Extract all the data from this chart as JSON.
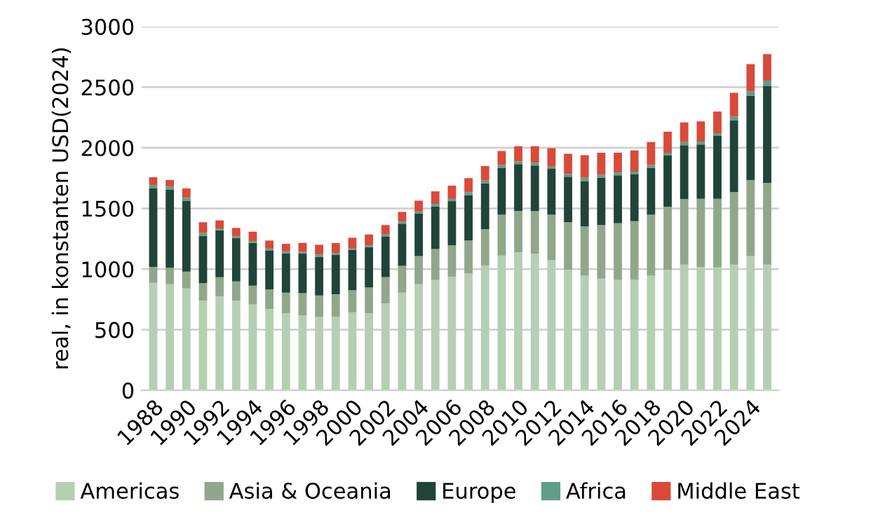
{
  "chart_data": {
    "type": "bar",
    "stacked": true,
    "ylabel": "real, in konstanten USD(2024)",
    "categories": [
      "1988",
      null,
      "1990",
      null,
      "1992",
      null,
      "1994",
      null,
      "1996",
      null,
      "1998",
      null,
      "2000",
      null,
      "2002",
      null,
      "2004",
      null,
      "2006",
      null,
      "2008",
      null,
      "2010",
      null,
      "2012",
      null,
      "2014",
      null,
      "2016",
      null,
      "2018",
      null,
      "2020",
      null,
      "2022",
      null,
      "2024",
      null
    ],
    "series": [
      {
        "name": "Americas",
        "color": "#b5cfb3",
        "values": [
          886,
          875,
          840,
          739,
          774,
          739,
          708,
          670,
          635,
          619,
          604,
          606,
          643,
          635,
          716,
          805,
          875,
          910,
          937,
          964,
          1030,
          1111,
          1138,
          1126,
          1072,
          995,
          945,
          921,
          910,
          914,
          945,
          995,
          1037,
          1018,
          1014,
          1037,
          1107,
          1037
        ]
      },
      {
        "name": "Asia & Oceania",
        "color": "#8fa88a",
        "values": [
          132,
          135,
          139,
          144,
          159,
          159,
          155,
          162,
          170,
          182,
          178,
          186,
          182,
          213,
          217,
          221,
          232,
          255,
          259,
          271,
          298,
          337,
          341,
          353,
          376,
          391,
          406,
          442,
          468,
          480,
          503,
          519,
          539,
          561,
          565,
          597,
          627,
          674
        ]
      },
      {
        "name": "Europe",
        "color": "#21443a",
        "values": [
          647,
          643,
          585,
          391,
          387,
          356,
          352,
          322,
          325,
          326,
          317,
          325,
          332,
          333,
          333,
          348,
          352,
          352,
          364,
          375,
          379,
          387,
          387,
          375,
          379,
          375,
          375,
          391,
          395,
          386,
          387,
          422,
          445,
          449,
          519,
          592,
          697,
          797
        ]
      },
      {
        "name": "Africa",
        "color": "#5f9e8a",
        "values": [
          27,
          27,
          23,
          23,
          15,
          16,
          16,
          15,
          16,
          15,
          20,
          15,
          16,
          15,
          19,
          16,
          16,
          20,
          19,
          24,
          23,
          23,
          23,
          23,
          19,
          24,
          28,
          23,
          23,
          24,
          23,
          23,
          27,
          24,
          23,
          31,
          35,
          47
        ]
      },
      {
        "name": "Middle East",
        "color": "#d94a3a",
        "values": [
          65,
          54,
          78,
          89,
          66,
          69,
          77,
          66,
          62,
          74,
          81,
          82,
          85,
          89,
          78,
          81,
          89,
          104,
          109,
          116,
          120,
          116,
          124,
          136,
          151,
          166,
          185,
          182,
          163,
          174,
          190,
          174,
          162,
          166,
          178,
          197,
          224,
          217
        ]
      }
    ],
    "ylim": [
      0,
      3000
    ],
    "yticks": [
      0,
      500,
      1000,
      1500,
      2000,
      2500,
      3000
    ],
    "grid": "y",
    "legend": "bottom"
  }
}
